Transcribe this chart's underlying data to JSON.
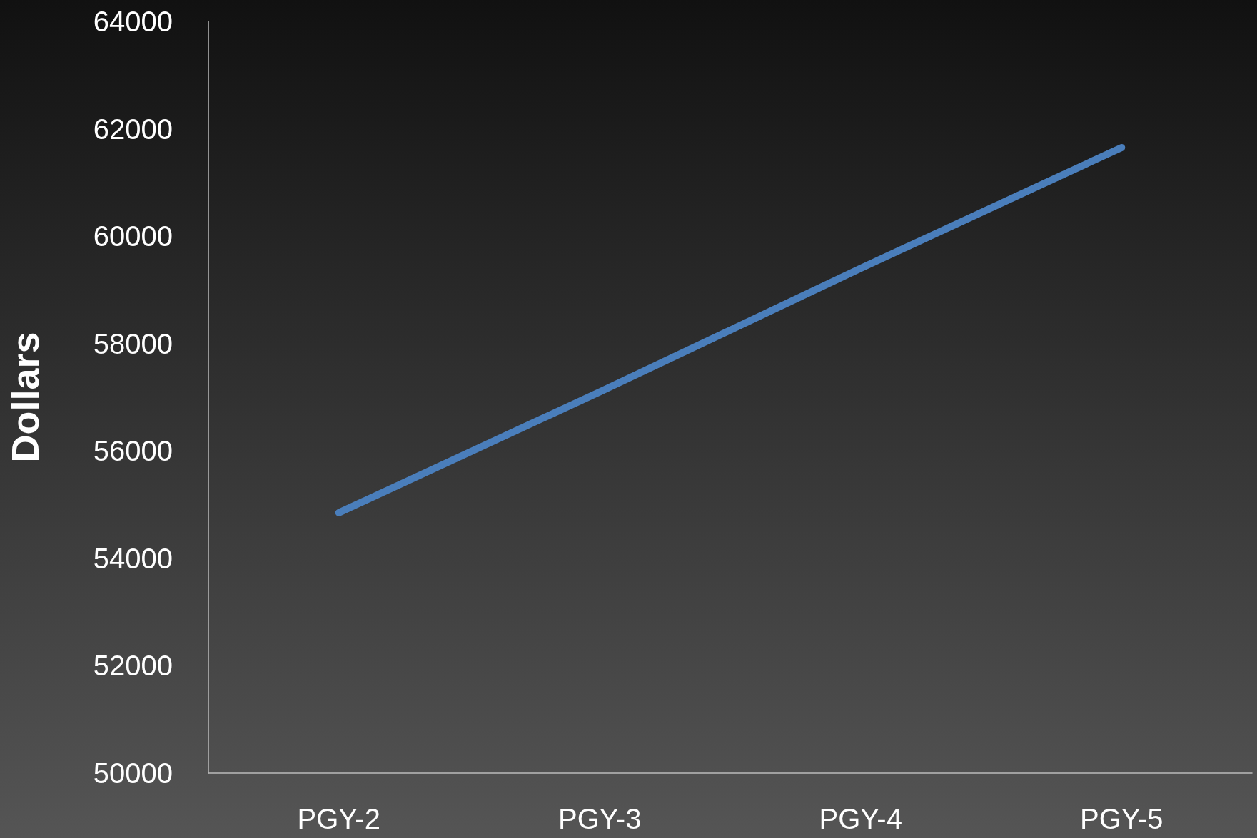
{
  "chart_data": {
    "type": "line",
    "ylabel": "Dollars",
    "categories": [
      "PGY-2",
      "PGY-3",
      "PGY-4",
      "PGY-5"
    ],
    "series": [
      {
        "color": "#4a7ebb",
        "values": [
          54850,
          57100,
          59400,
          61650
        ]
      }
    ],
    "ylim": [
      50000,
      64000
    ],
    "yticks": [
      50000,
      52000,
      54000,
      56000,
      58000,
      60000,
      62000,
      64000
    ],
    "grid": false,
    "marker": "none",
    "line_style": "solid"
  }
}
